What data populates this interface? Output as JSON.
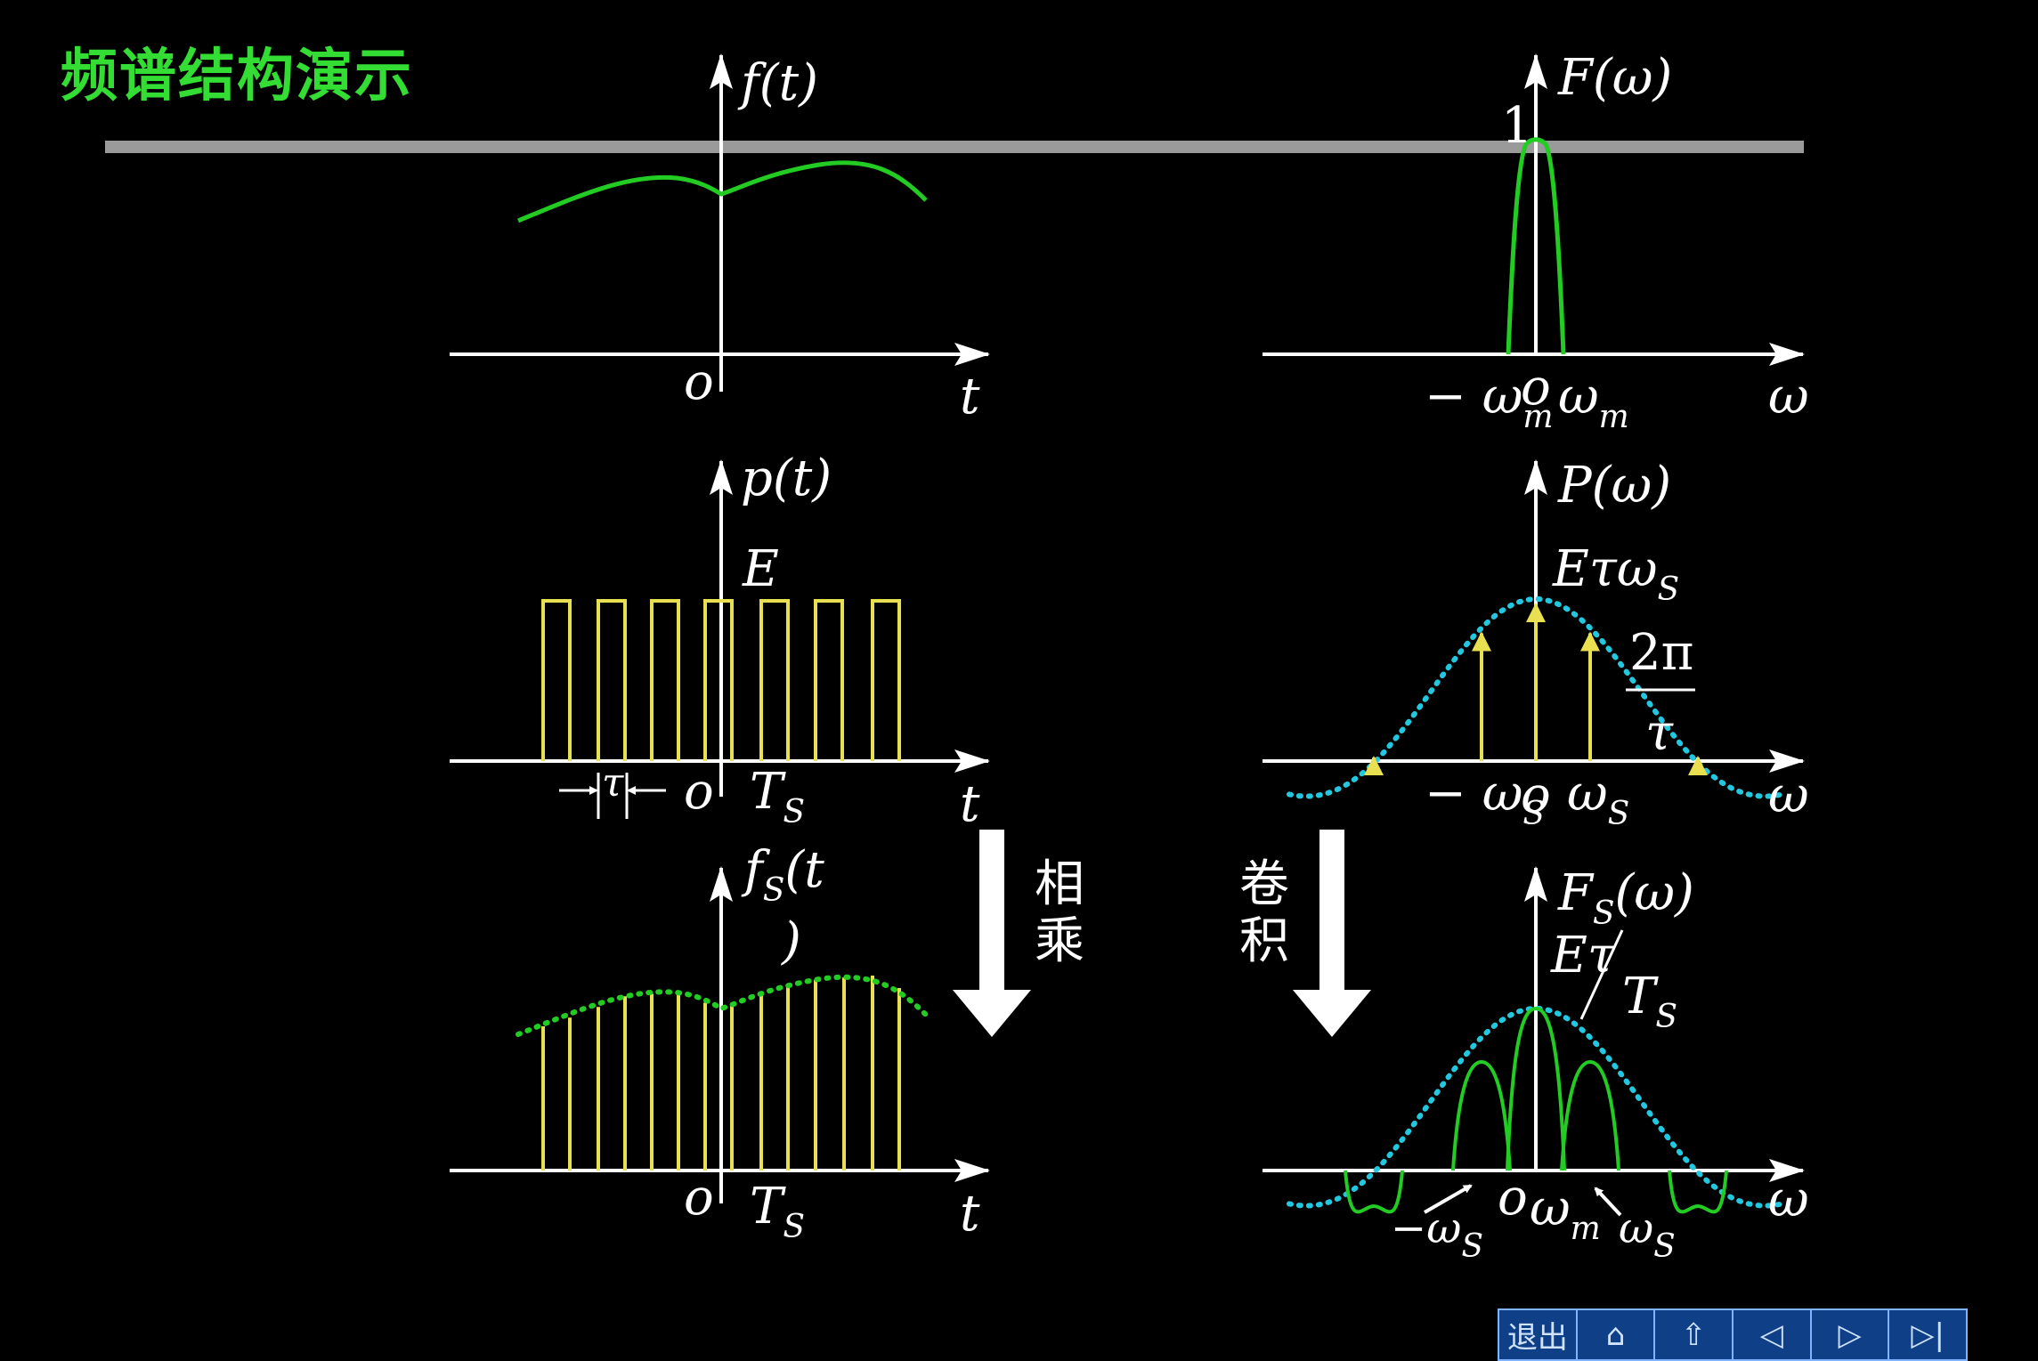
{
  "title": "频谱结构演示",
  "panels": {
    "f_t": {
      "ylabel": "f(t)",
      "origin": "o",
      "xlabel": "t"
    },
    "F_w": {
      "ylabel": "F(ω)",
      "peak": "1",
      "neg_wm": "− ω",
      "neg_wm_sub": "m",
      "origin": "o",
      "wm": "ω",
      "wm_sub": "m",
      "xlabel": "ω"
    },
    "p_t": {
      "ylabel": "p(t)",
      "amp": "E",
      "tau": "τ",
      "origin": "o",
      "Ts": "T",
      "Ts_sub": "S",
      "xlabel": "t"
    },
    "P_w": {
      "ylabel": "P(ω)",
      "peak": "Eτω",
      "peak_sub": "S",
      "frac_num": "2π",
      "frac_den": "τ",
      "neg_ws": "− ω",
      "neg_ws_sub": "S",
      "origin": "o",
      "ws": "ω",
      "ws_sub": "S",
      "xlabel": "ω"
    },
    "fs_t": {
      "ylabel": "f",
      "ylabel_sub": "S",
      "ylabel_tail": "(t",
      "ylabel_close": ")",
      "origin": "o",
      "Ts": "T",
      "Ts_sub": "S",
      "xlabel": "t"
    },
    "Fs_w": {
      "ylabel": "F",
      "ylabel_sub": "S",
      "ylabel_tail": "(ω)",
      "peak_num": "Eτ",
      "peak_den": "T",
      "peak_den_sub": "S",
      "neg_ws": "−ω",
      "neg_ws_sub": "S",
      "origin": "o",
      "wm": "ω",
      "wm_sub": "m",
      "ws": "ω",
      "ws_sub": "S",
      "xlabel": "ω"
    }
  },
  "ops": {
    "multiply": "相乘",
    "convolve": "卷积"
  },
  "nav": {
    "exit": "退出",
    "home": "⌂",
    "up": "⇧",
    "prev": "◁",
    "next": "▷",
    "last": "▷|"
  },
  "colors": {
    "signal": "#22cc22",
    "pulse": "#e8e050",
    "envelope": "#22c8e0",
    "axis": "#ffffff",
    "bar": "#9a9a9a"
  }
}
